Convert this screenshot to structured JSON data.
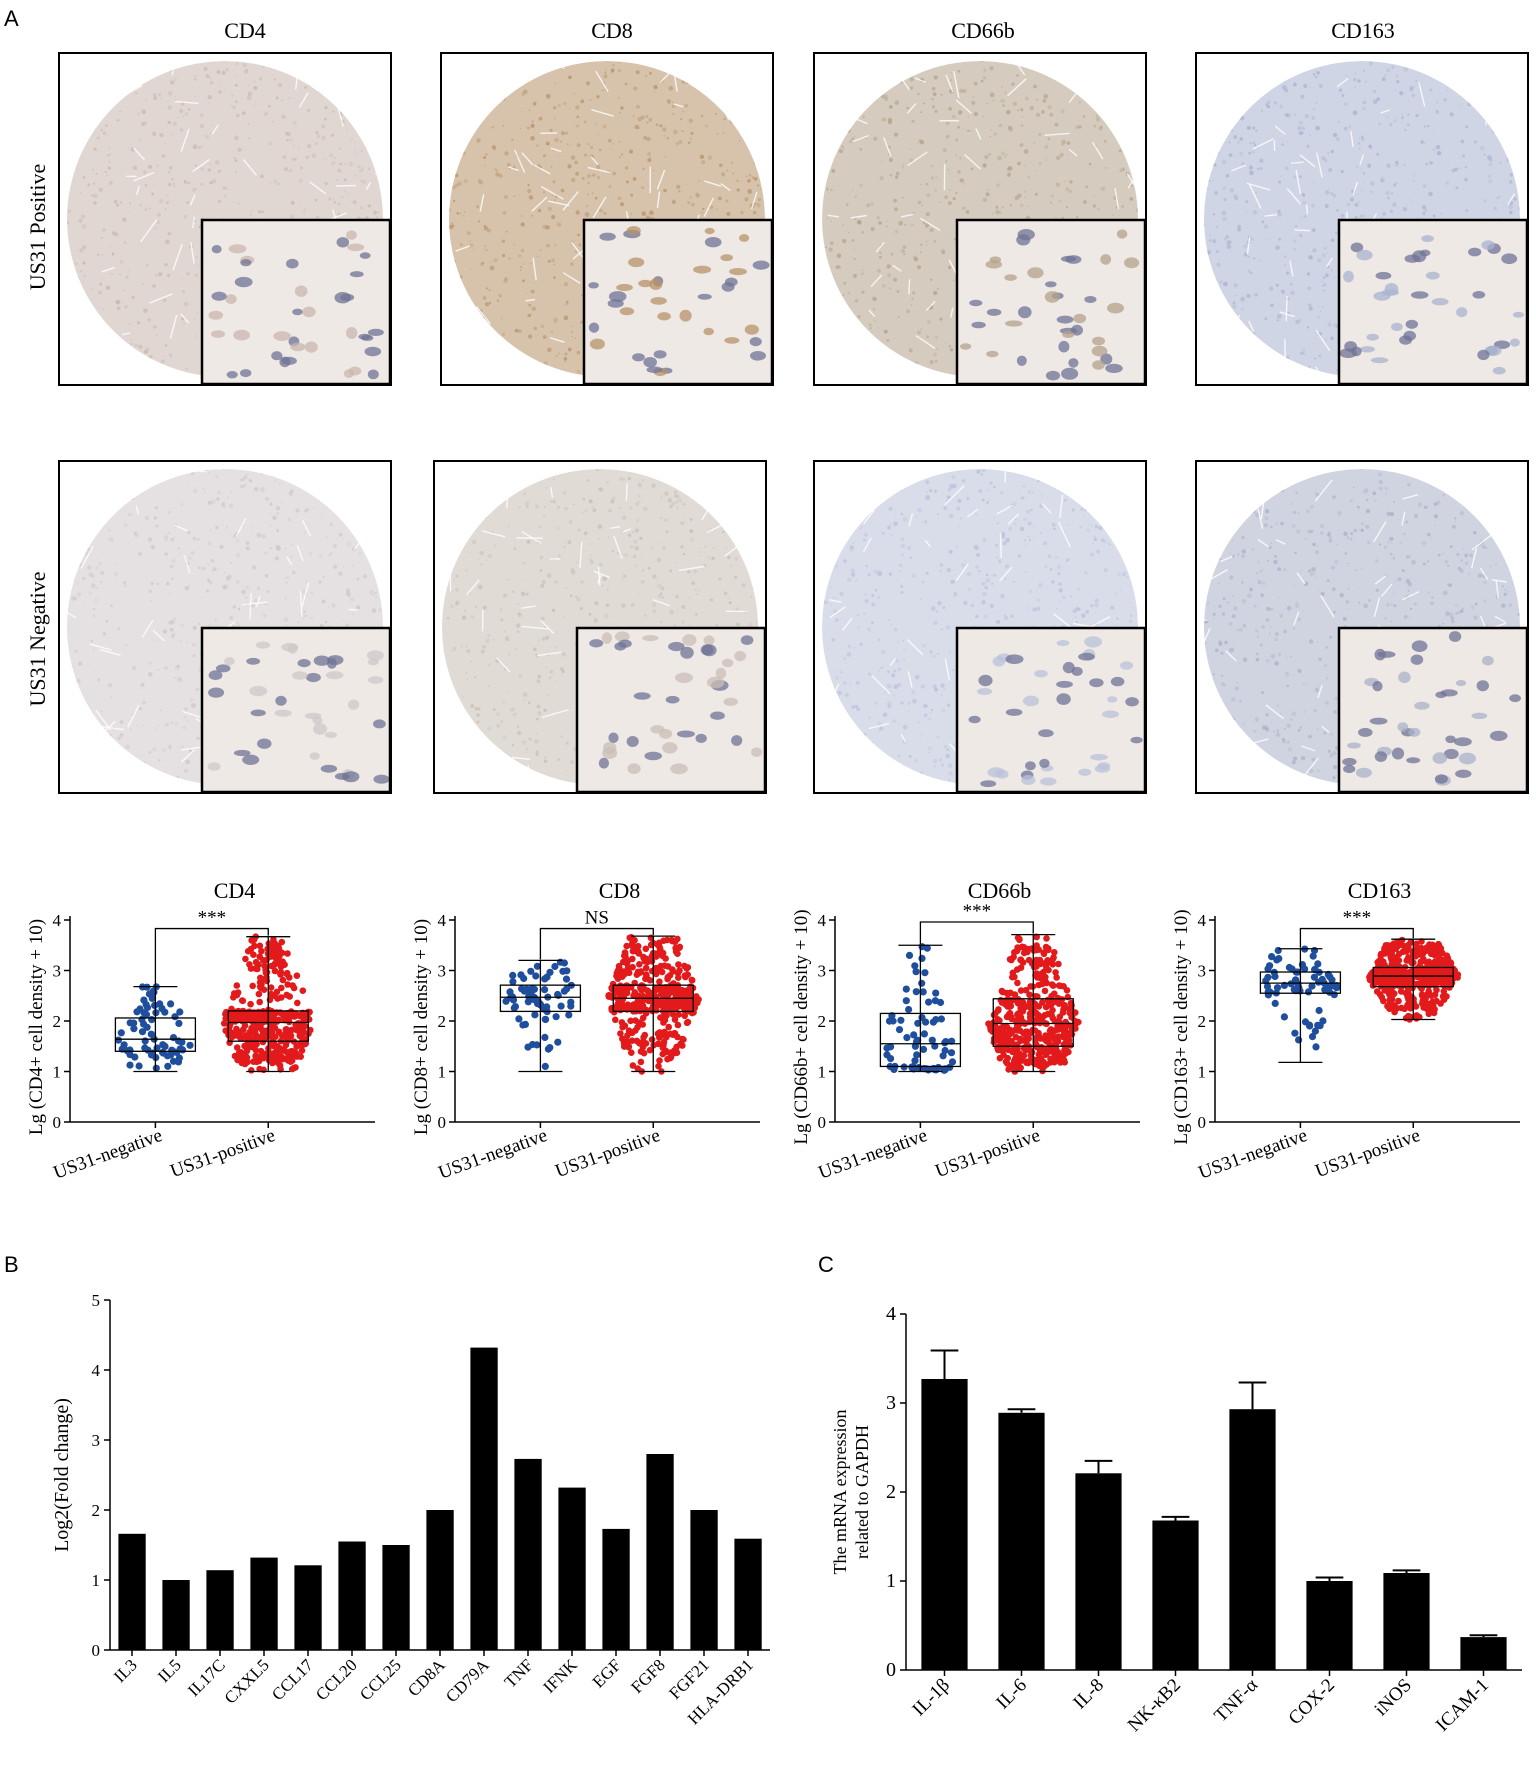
{
  "panel_labels": {
    "a": "A",
    "b": "B",
    "c": "C"
  },
  "ihc": {
    "columns": [
      "CD4",
      "CD8",
      "CD66b",
      "CD163"
    ],
    "rows": [
      "US31 Positive",
      "US31 Negative"
    ],
    "stain_colors": {
      "positive": [
        "#c9b6ad",
        "#b79268",
        "#b3a28a",
        "#a9b3cf"
      ],
      "negative": [
        "#cfc7c8",
        "#c9bdb5",
        "#b9c1d9",
        "#a9b1c8"
      ]
    }
  },
  "chart_data": [
    {
      "type": "box-scatter",
      "title": "CD4",
      "ylabel": "Lg (CD4+ cell density + 10)",
      "categories": [
        "US31-negative",
        "US31-positive"
      ],
      "ylim": [
        0,
        4
      ],
      "yticks": [
        0,
        1,
        2,
        3,
        4
      ],
      "significance": "***",
      "bracket_y": 3.83,
      "series": [
        {
          "color": "#1f4e9c",
          "n": 70,
          "min": 1.0,
          "q1": 1.4,
          "median": 1.64,
          "q3": 2.06,
          "max": 2.68
        },
        {
          "color": "#e31a1c",
          "n": 430,
          "min": 1.0,
          "q1": 1.6,
          "median": 1.97,
          "q3": 2.2,
          "max": 3.67
        }
      ]
    },
    {
      "type": "box-scatter",
      "title": "CD8",
      "ylabel": "Lg (CD8+ cell density + 10)",
      "categories": [
        "US31-negative",
        "US31-positive"
      ],
      "ylim": [
        0,
        4
      ],
      "yticks": [
        0,
        1,
        2,
        3,
        4
      ],
      "significance": "NS",
      "bracket_y": 3.83,
      "series": [
        {
          "color": "#1f4e9c",
          "n": 70,
          "min": 1.0,
          "q1": 2.19,
          "median": 2.47,
          "q3": 2.71,
          "max": 3.2
        },
        {
          "color": "#e31a1c",
          "n": 430,
          "min": 1.0,
          "q1": 2.19,
          "median": 2.45,
          "q3": 2.71,
          "max": 3.68
        }
      ]
    },
    {
      "type": "box-scatter",
      "title": "CD66b",
      "ylabel": "Lg (CD66b+ cell density + 10)",
      "categories": [
        "US31-negative",
        "US31-positive"
      ],
      "ylim": [
        0,
        4
      ],
      "yticks": [
        0,
        1,
        2,
        3,
        4
      ],
      "significance": "***",
      "bracket_y": 3.96,
      "series": [
        {
          "color": "#1f4e9c",
          "n": 70,
          "min": 1.0,
          "q1": 1.1,
          "median": 1.55,
          "q3": 2.15,
          "max": 3.5
        },
        {
          "color": "#e31a1c",
          "n": 430,
          "min": 1.0,
          "q1": 1.5,
          "median": 1.95,
          "q3": 2.44,
          "max": 3.71
        }
      ]
    },
    {
      "type": "box-scatter",
      "title": "CD163",
      "ylabel": "Lg (CD163+ cell density + 10)",
      "categories": [
        "US31-negative",
        "US31-positive"
      ],
      "ylim": [
        0,
        4
      ],
      "yticks": [
        0,
        1,
        2,
        3,
        4
      ],
      "significance": "***",
      "bracket_y": 3.83,
      "series": [
        {
          "color": "#1f4e9c",
          "n": 70,
          "min": 1.18,
          "q1": 2.55,
          "median": 2.75,
          "q3": 2.97,
          "max": 3.43
        },
        {
          "color": "#e31a1c",
          "n": 430,
          "min": 2.03,
          "q1": 2.68,
          "median": 2.89,
          "q3": 3.06,
          "max": 3.62
        }
      ]
    },
    {
      "type": "bar",
      "ylabel": "Log2(Fold change)",
      "categories": [
        "IL3",
        "IL5",
        "IL17C",
        "CXXL5",
        "CCL17",
        "CCL20",
        "CCL25",
        "CD8A",
        "CD79A",
        "TNF",
        "IFNK",
        "EGF",
        "FGF8",
        "FGF21",
        "HLA-DRB1"
      ],
      "values": [
        1.66,
        1.0,
        1.14,
        1.32,
        1.21,
        1.55,
        1.5,
        2.0,
        4.32,
        2.73,
        2.32,
        1.73,
        2.8,
        2.0,
        1.59
      ],
      "ylim": [
        0,
        5
      ],
      "yticks": [
        0,
        1,
        2,
        3,
        4,
        5
      ]
    },
    {
      "type": "bar",
      "ylabel": "The mRNA expression related to GAPDH",
      "ylabel_lines": [
        "The mRNA expression",
        "related to GAPDH"
      ],
      "categories": [
        "IL-1β",
        "IL-6",
        "IL-8",
        "NK-κB2",
        "TNF-α",
        "COX-2",
        "iNOS",
        "ICAM-1"
      ],
      "values": [
        3.27,
        2.89,
        2.21,
        1.68,
        2.93,
        1.0,
        1.09,
        0.37
      ],
      "errors": [
        0.32,
        0.04,
        0.14,
        0.04,
        0.3,
        0.04,
        0.03,
        0.02
      ],
      "ylim": [
        0,
        4
      ],
      "yticks": [
        0,
        1,
        2,
        3,
        4
      ]
    }
  ]
}
